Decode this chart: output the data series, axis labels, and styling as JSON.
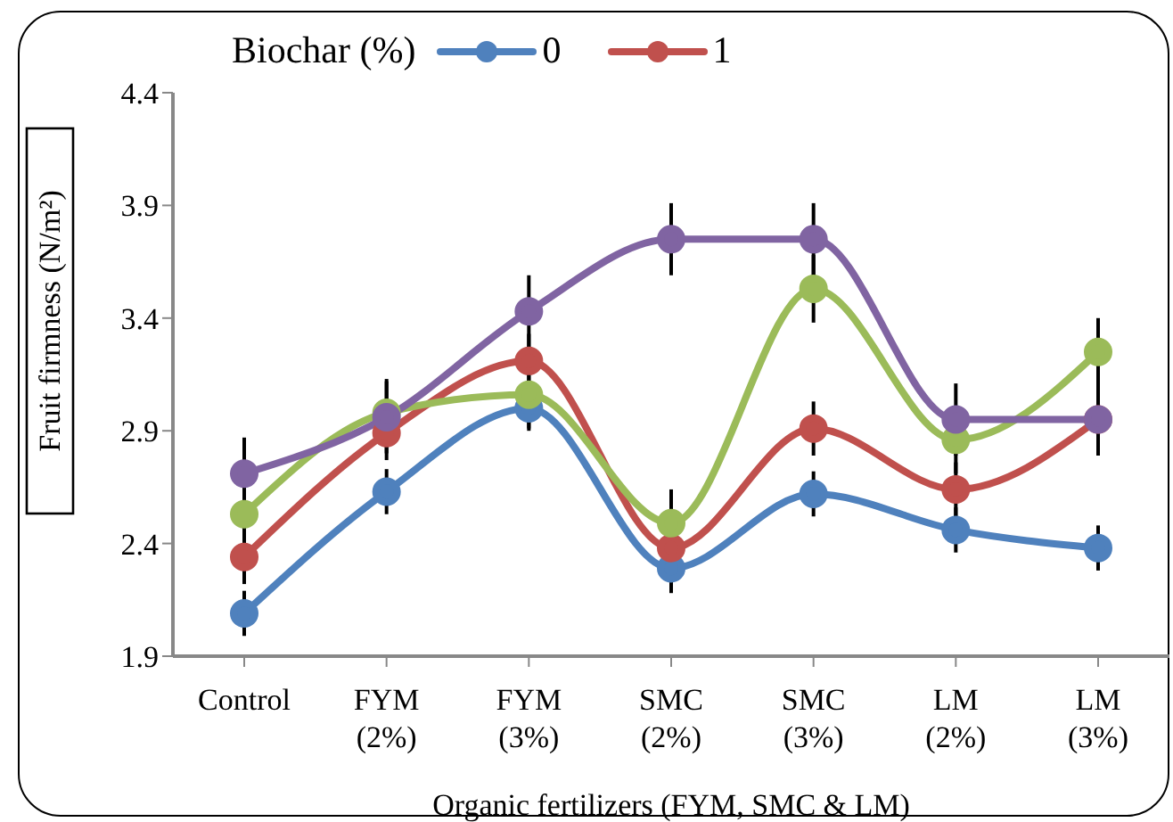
{
  "chart_data": {
    "type": "line",
    "xlabel": "Organic fertilizers (FYM, SMC & LM)",
    "ylabel": "Fruit firmness (N/m²)",
    "legend_title": "Biochar (%)",
    "legend": "top left",
    "marker": "circle",
    "line_style": "solid",
    "grid": false,
    "categories": [
      "Control",
      "FYM (2%)",
      "FYM (3%)",
      "SMC (2%)",
      "SMC (3%)",
      "LM (2%)",
      "LM (3%)"
    ],
    "ylim": [
      1.9,
      4.4
    ],
    "yticks": [
      1.9,
      2.4,
      2.9,
      3.4,
      3.9,
      4.4
    ],
    "series": [
      {
        "name": "0",
        "color": "#4f81bd",
        "values": [
          2.09,
          2.63,
          3.0,
          2.29,
          2.62,
          2.46,
          2.38
        ],
        "errors": [
          0.1,
          0.1,
          0.1,
          0.11,
          0.1,
          0.1,
          0.1
        ]
      },
      {
        "name": "1",
        "color": "#c0504d",
        "values": [
          2.34,
          2.89,
          3.21,
          2.38,
          2.91,
          2.64,
          2.95
        ],
        "errors": [
          0.12,
          0.12,
          0.12,
          0.18,
          0.12,
          0.12,
          0.12
        ]
      },
      {
        "color": "#9bbb59",
        "values": [
          2.53,
          2.98,
          3.06,
          2.49,
          3.53,
          2.86,
          3.25
        ],
        "errors": [
          0.11,
          0.15,
          0.15,
          0.15,
          0.15,
          0.15,
          0.15
        ]
      },
      {
        "color": "#8064a2",
        "values": [
          2.71,
          2.96,
          3.43,
          3.75,
          3.75,
          2.95,
          2.95
        ],
        "errors": [
          0.16,
          0.16,
          0.16,
          0.16,
          0.16,
          0.16,
          0.16
        ]
      }
    ]
  }
}
